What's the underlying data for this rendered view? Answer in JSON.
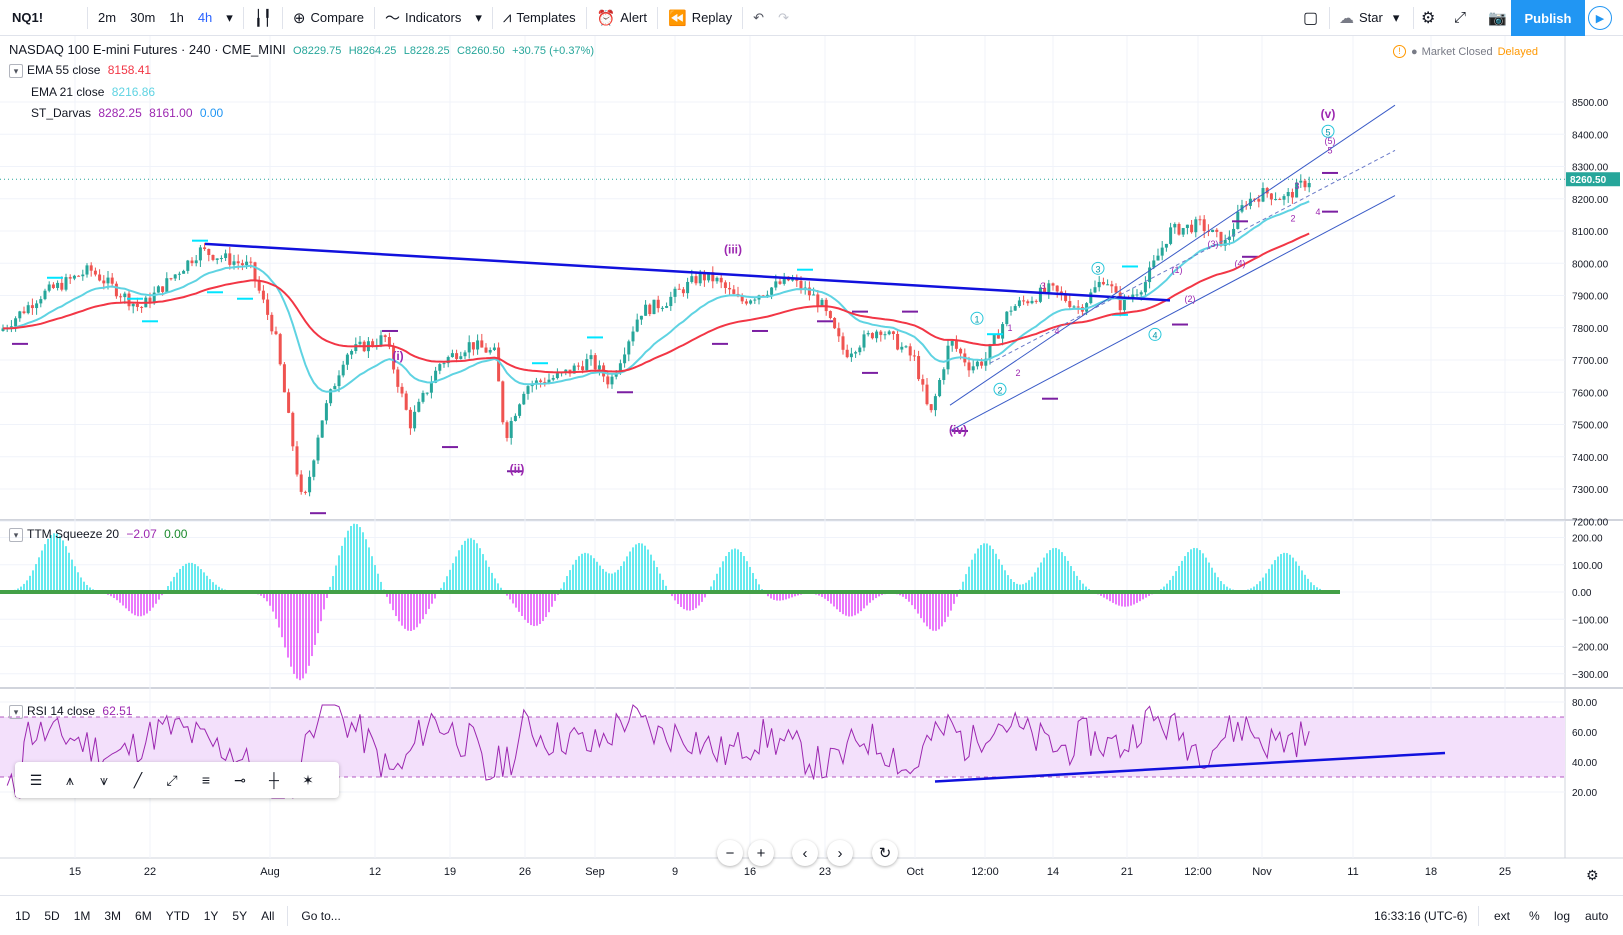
{
  "toolbar": {
    "symbol": "NQ1!",
    "intervals": [
      "2m",
      "30m",
      "1h",
      "4h"
    ],
    "active_interval": "4h",
    "compare": "Compare",
    "indicators": "Indicators",
    "templates": "Templates",
    "alert": "Alert",
    "replay": "Replay",
    "layout_name": "Star",
    "publish": "Publish"
  },
  "header": {
    "title": "NASDAQ 100 E-mini Futures · 240 · CME_MINI",
    "open": "O8229.75",
    "high": "H8264.25",
    "low": "L8228.25",
    "close": "C8260.50",
    "change": "+30.75 (+0.37%)",
    "market_status": "Market Closed",
    "delayed": "Delayed"
  },
  "legend": {
    "ema55_label": "EMA 55 close",
    "ema55_value": "8158.41",
    "ema21_label": "EMA 21 close",
    "ema21_value": "8216.86",
    "darvas_label": "ST_Darvas",
    "darvas_v1": "8282.25",
    "darvas_v2": "8161.00",
    "darvas_v3": "0.00",
    "ttm_label": "TTM Squeeze 20",
    "ttm_v1": "−2.07",
    "ttm_v2": "0.00",
    "rsi_label": "RSI 14 close",
    "rsi_value": "62.51"
  },
  "colors": {
    "up": "#26a69a",
    "down": "#ef5350",
    "ema55": "#f23645",
    "ema21": "#5fd3e2",
    "trend": "#1111dd",
    "wave": "#9c27b0",
    "darvas_cyan": "#00e5ff",
    "darvas_purple": "#7b1fa2",
    "rsi": "#9c27b0",
    "ttm_pos": "#26e0e8",
    "ttm_neg": "#e040fb",
    "ttm_zero": "#43a047",
    "accent": "#2196f3"
  },
  "chart_data": {
    "type": "candlestick",
    "price_axis_ticks": [
      "8500.00",
      "8400.00",
      "8300.00",
      "8200.00",
      "8100.00",
      "8000.00",
      "7900.00",
      "7800.00",
      "7700.00",
      "7600.00",
      "7500.00",
      "7400.00",
      "7300.00",
      "7200.00"
    ],
    "last_price": "8260.50",
    "ttm_axis_ticks": [
      "200.00",
      "100.00",
      "0.00",
      "−100.00",
      "−200.00",
      "−300.00"
    ],
    "rsi_axis_ticks": [
      "80.00",
      "60.00",
      "40.00",
      "20.00"
    ],
    "time_axis_ticks": [
      "15",
      "22",
      "Aug",
      "12",
      "19",
      "26",
      "Sep",
      "9",
      "16",
      "23",
      "Oct",
      "12:00",
      "14",
      "21",
      "12:00",
      "Nov",
      "11",
      "18",
      "25"
    ],
    "wave_labels": [
      "(i)",
      "(ii)",
      "(iii)",
      "(iv)",
      "(v)"
    ],
    "sub_wave_labels": [
      "(1)",
      "(2)",
      "(3)",
      "(4)",
      "(5)",
      "1",
      "2",
      "3",
      "4",
      "5"
    ],
    "circle_labels": [
      "1",
      "2",
      "3",
      "4",
      "5"
    ]
  },
  "bottom": {
    "ranges": [
      "1D",
      "5D",
      "1M",
      "3M",
      "6M",
      "YTD",
      "1Y",
      "5Y",
      "All"
    ],
    "goto": "Go to...",
    "time": "16:33:16 (UTC-6)",
    "ext": "ext",
    "pct": "%",
    "log": "log",
    "auto": "auto"
  }
}
